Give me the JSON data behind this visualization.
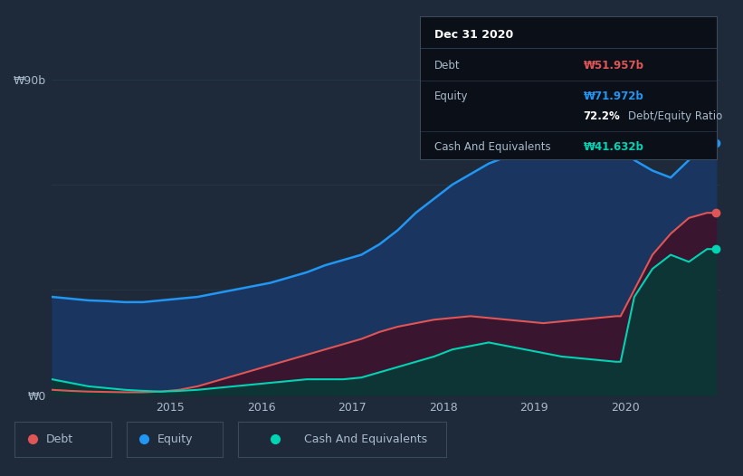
{
  "background_color": "#1e2a3a",
  "plot_bg_color": "#1e2a3a",
  "grid_color": "#263545",
  "equity_color": "#2196f3",
  "debt_color": "#e05555",
  "cash_color": "#00d4b4",
  "equity_fill": "#1a3560",
  "debt_fill": "#3a1530",
  "cash_fill": "#0e3535",
  "debt_label": "Debt",
  "equity_label": "Equity",
  "cash_label": "Cash And Equivalents",
  "tooltip_title": "Dec 31 2020",
  "tooltip_debt_label": "Debt",
  "tooltip_debt_value": "₩51.957b",
  "tooltip_equity_label": "Equity",
  "tooltip_equity_value": "₩71.972b",
  "tooltip_ratio": "72.2%",
  "tooltip_ratio_label": "Debt/Equity Ratio",
  "tooltip_cash_label": "Cash And Equivalents",
  "tooltip_cash_value": "₩41.632b",
  "years": [
    2013.7,
    2013.9,
    2014.1,
    2014.3,
    2014.5,
    2014.7,
    2014.9,
    2015.1,
    2015.3,
    2015.5,
    2015.7,
    2015.9,
    2016.1,
    2016.3,
    2016.5,
    2016.7,
    2016.9,
    2017.1,
    2017.3,
    2017.5,
    2017.7,
    2017.9,
    2018.1,
    2018.3,
    2018.5,
    2018.7,
    2018.9,
    2019.1,
    2019.3,
    2019.5,
    2019.7,
    2019.9,
    2019.95,
    2020.1,
    2020.3,
    2020.5,
    2020.7,
    2020.9,
    2021.0
  ],
  "equity": [
    28,
    27.5,
    27,
    26.8,
    26.5,
    26.5,
    27,
    27.5,
    28,
    29,
    30,
    31,
    32,
    33.5,
    35,
    37,
    38.5,
    40,
    43,
    47,
    52,
    56,
    60,
    63,
    66,
    68,
    68.5,
    70,
    72,
    74,
    75,
    75.5,
    71,
    67,
    64,
    62,
    67,
    71.97,
    71.97
  ],
  "debt": [
    1.5,
    1.2,
    1.0,
    0.9,
    0.8,
    0.8,
    1.0,
    1.5,
    2.5,
    4,
    5.5,
    7,
    8.5,
    10,
    11.5,
    13,
    14.5,
    16,
    18,
    19.5,
    20.5,
    21.5,
    22,
    22.5,
    22,
    21.5,
    21,
    20.5,
    21,
    21.5,
    22,
    22.5,
    22.5,
    30,
    40,
    46,
    50.5,
    51.96,
    51.96
  ],
  "cash": [
    4.5,
    3.5,
    2.5,
    2.0,
    1.5,
    1.2,
    1.0,
    1.2,
    1.5,
    2.0,
    2.5,
    3.0,
    3.5,
    4.0,
    4.5,
    4.5,
    4.5,
    5,
    6.5,
    8,
    9.5,
    11,
    13,
    14,
    15,
    14,
    13,
    12,
    11,
    10.5,
    10,
    9.5,
    9.5,
    28,
    36,
    40,
    38,
    41.63,
    41.63
  ],
  "ylim": [
    0,
    95
  ],
  "xlim": [
    2013.7,
    2021.05
  ],
  "ytick_positions": [
    0,
    30,
    60,
    90
  ],
  "xtick_positions": [
    2015,
    2016,
    2017,
    2018,
    2019,
    2020
  ],
  "xtick_labels": [
    "2015",
    "2016",
    "2017",
    "2018",
    "2019",
    "2020"
  ]
}
